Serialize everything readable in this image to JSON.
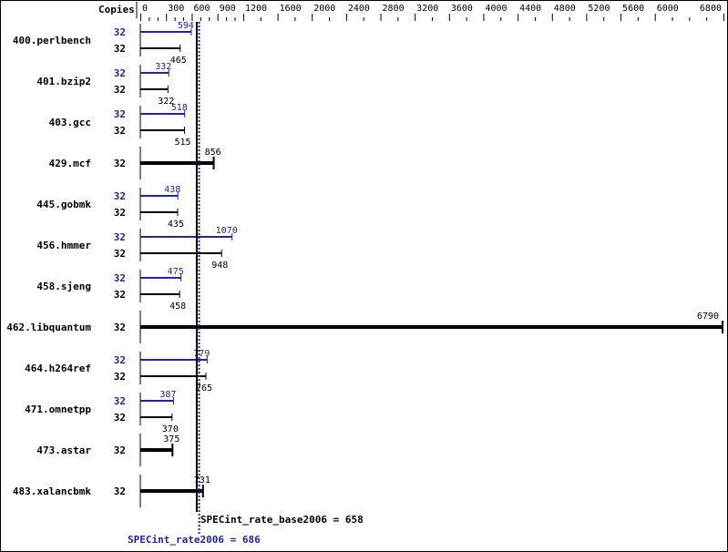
{
  "chart_data": {
    "type": "bar",
    "orientation": "horizontal",
    "axis_label": "Copies",
    "xlim": [
      0,
      6800
    ],
    "tick_labels": [
      0,
      300,
      600,
      900,
      1200,
      1600,
      2000,
      2400,
      2800,
      3200,
      3600,
      4000,
      4400,
      4800,
      5200,
      5600,
      6000,
      6800
    ],
    "categories": [
      "400.perlbench",
      "401.bzip2",
      "403.gcc",
      "429.mcf",
      "445.gobmk",
      "456.hmmer",
      "458.sjeng",
      "462.libquantum",
      "464.h264ref",
      "471.omnetpp",
      "473.astar",
      "483.xalancbmk"
    ],
    "series": [
      {
        "name": "SPECint_rate2006",
        "color": "#2222aa",
        "copies": [
          32,
          32,
          32,
          null,
          32,
          32,
          32,
          null,
          32,
          32,
          null,
          null
        ],
        "values": [
          594,
          332,
          518,
          null,
          438,
          1070,
          475,
          null,
          779,
          387,
          null,
          null
        ]
      },
      {
        "name": "SPECint_rate_base2006",
        "color": "#000000",
        "copies": [
          32,
          32,
          32,
          32,
          32,
          32,
          32,
          32,
          32,
          32,
          32,
          32
        ],
        "values": [
          465,
          322,
          515,
          856,
          435,
          948,
          458,
          6790,
          765,
          370,
          375,
          731
        ]
      }
    ],
    "reference_lines": [
      {
        "label": "SPECint_rate_base2006 = 658",
        "value": 658,
        "color": "#000000",
        "style": "solid"
      },
      {
        "label": "SPECint_rate2006 = 686",
        "value": 686,
        "color": "#2222aa",
        "style": "dotted"
      }
    ]
  }
}
